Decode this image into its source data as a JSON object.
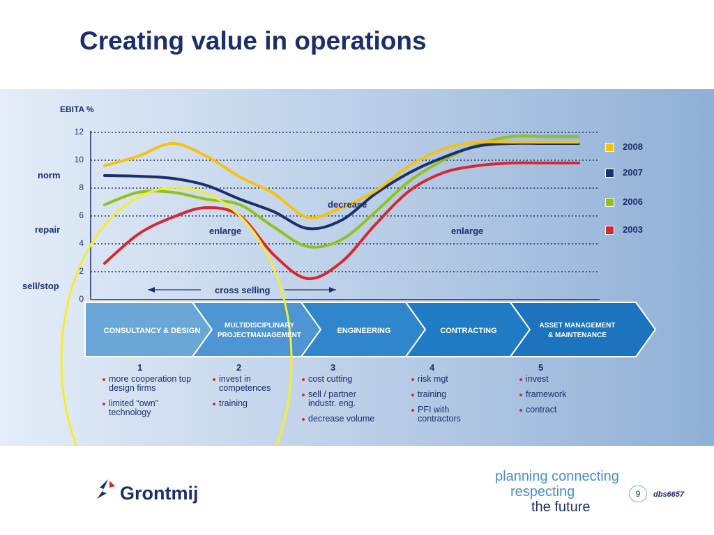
{
  "title": "Creating value in operations",
  "chart_data": {
    "type": "line",
    "ylabel": "EBITA %",
    "ylim": [
      0,
      12
    ],
    "yticks": [
      0,
      2,
      4,
      6,
      8,
      10,
      12
    ],
    "grid": true,
    "legend_position": "right",
    "x_positions": [
      0,
      1,
      2,
      3,
      4,
      5,
      6,
      7,
      8,
      9,
      10,
      11,
      12,
      13,
      14
    ],
    "series": [
      {
        "name": "2008",
        "color": "#f7c20e",
        "values": [
          9.6,
          10.3,
          11.2,
          10.3,
          8.8,
          7.6,
          5.9,
          6.6,
          7.8,
          9.6,
          10.8,
          11.3,
          11.3,
          11.3,
          11.3
        ]
      },
      {
        "name": "2007",
        "color": "#1b2f6b",
        "values": [
          8.9,
          8.85,
          8.7,
          8.2,
          7.2,
          6.3,
          5.1,
          5.7,
          7.6,
          9.1,
          10.2,
          11.0,
          11.2,
          11.2,
          11.2
        ]
      },
      {
        "name": "2006",
        "color": "#93c11b",
        "values": [
          6.8,
          7.7,
          7.7,
          7.2,
          6.8,
          5.2,
          3.8,
          4.3,
          6.3,
          8.5,
          10.0,
          11.1,
          11.7,
          11.7,
          11.7
        ]
      },
      {
        "name": "2003",
        "color": "#d7282f",
        "values": [
          2.6,
          4.7,
          5.9,
          6.6,
          6.0,
          3.2,
          1.5,
          2.7,
          5.4,
          7.8,
          9.1,
          9.6,
          9.8,
          9.8,
          9.8
        ]
      }
    ],
    "annotations": {
      "decrease": "decrease",
      "enlarge_left": "enlarge",
      "enlarge_right": "enlarge",
      "cross_selling": "cross selling",
      "norm": "norm",
      "repair": "repair",
      "sell_stop": "sell/stop"
    }
  },
  "stages": [
    {
      "line1": "CONSULTANCY & DESIGN",
      "line2": ""
    },
    {
      "line1": "MULTIDISCIPLINARY",
      "line2": "PROJECTMANAGEMENT"
    },
    {
      "line1": "ENGINEERING",
      "line2": ""
    },
    {
      "line1": "CONTRACTING",
      "line2": ""
    },
    {
      "line1": "ASSET MANAGEMENT",
      "line2": "& MAINTENANCE"
    }
  ],
  "columns": [
    {
      "num": "1",
      "bullets": [
        "more cooperation top design firms",
        "limited “own” technology"
      ]
    },
    {
      "num": "2",
      "bullets": [
        "invest in competences",
        "training"
      ]
    },
    {
      "num": "3",
      "bullets": [
        "cost cutting",
        "sell / partner industr. eng.",
        "decrease volume"
      ]
    },
    {
      "num": "4",
      "bullets": [
        "risk mgt",
        "training",
        "PFI with contractors"
      ]
    },
    {
      "num": "5",
      "bullets": [
        "invest",
        "framework",
        "contract"
      ]
    }
  ],
  "footer": {
    "logo_text": "Grontmij",
    "tagline": [
      "planning connecting",
      "respecting",
      "the future"
    ],
    "page_number": "9",
    "doc_id": "dbs6657"
  },
  "colors": {
    "navy": "#1b2f6b",
    "highlight_ellipse": "#f4ee2a",
    "stage_blue": "#1f86c9"
  }
}
